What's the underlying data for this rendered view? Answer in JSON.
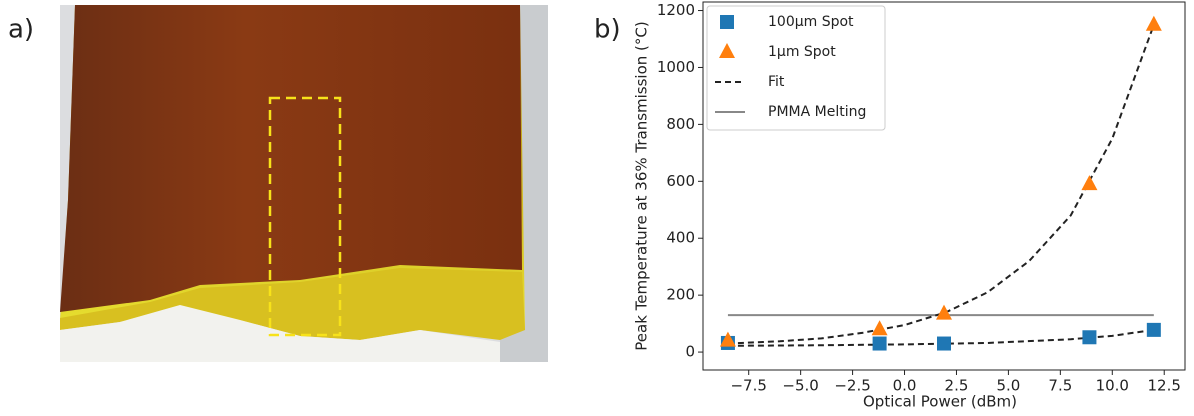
{
  "panel_labels": [
    "a)",
    "b)"
  ],
  "chart_data": {
    "type": "scatter",
    "xlabel": "Optical Power (dBm)",
    "ylabel": "Peak Temperature at 36% Transmission (°C)",
    "xlim": [
      -9.7,
      13.5
    ],
    "ylim": [
      -63,
      1230
    ],
    "xticks": [
      {
        "value": -7.5,
        "label": "−7.5"
      },
      {
        "value": -5,
        "label": "−5.0"
      },
      {
        "value": -2.5,
        "label": "−2.5"
      },
      {
        "value": 0,
        "label": "0.0"
      },
      2.5,
      {
        "value": 5,
        "label": "5.0"
      },
      7.5,
      {
        "value": 10,
        "label": "10.0"
      },
      12.5
    ],
    "yticks": [
      0,
      200,
      400,
      600,
      800,
      1000,
      1200
    ],
    "legend": "upper left",
    "series": [
      {
        "name": "100μm Spot",
        "color": "#1f77b4",
        "marker": "square",
        "x": [
          -8.5,
          -1.2,
          1.9,
          8.9,
          12
        ],
        "values": [
          32,
          30,
          30,
          52,
          78
        ]
      },
      {
        "name": "1μm Spot",
        "color": "#ff7f0e",
        "marker": "triangle",
        "x": [
          -8.5,
          -1.2,
          1.9,
          8.9,
          12
        ],
        "values": [
          40,
          80,
          135,
          590,
          1150
        ]
      }
    ],
    "fit": {
      "name": "Fit",
      "color": "#222222",
      "lines": [
        {
          "x": [
            -8.5,
            -6,
            -4,
            -2,
            0,
            2,
            4,
            6,
            8,
            10,
            12
          ],
          "values": [
            30,
            38,
            48,
            68,
            95,
            140,
            210,
            320,
            480,
            750,
            1150
          ]
        },
        {
          "x": [
            -8.5,
            -4,
            0,
            4,
            8,
            10,
            12
          ],
          "values": [
            22,
            24,
            27,
            32,
            45,
            57,
            78
          ]
        }
      ]
    },
    "reference_line": {
      "name": "PMMA Melting",
      "color": "#888888",
      "value": 130,
      "x": [
        -8.5,
        12
      ]
    }
  }
}
